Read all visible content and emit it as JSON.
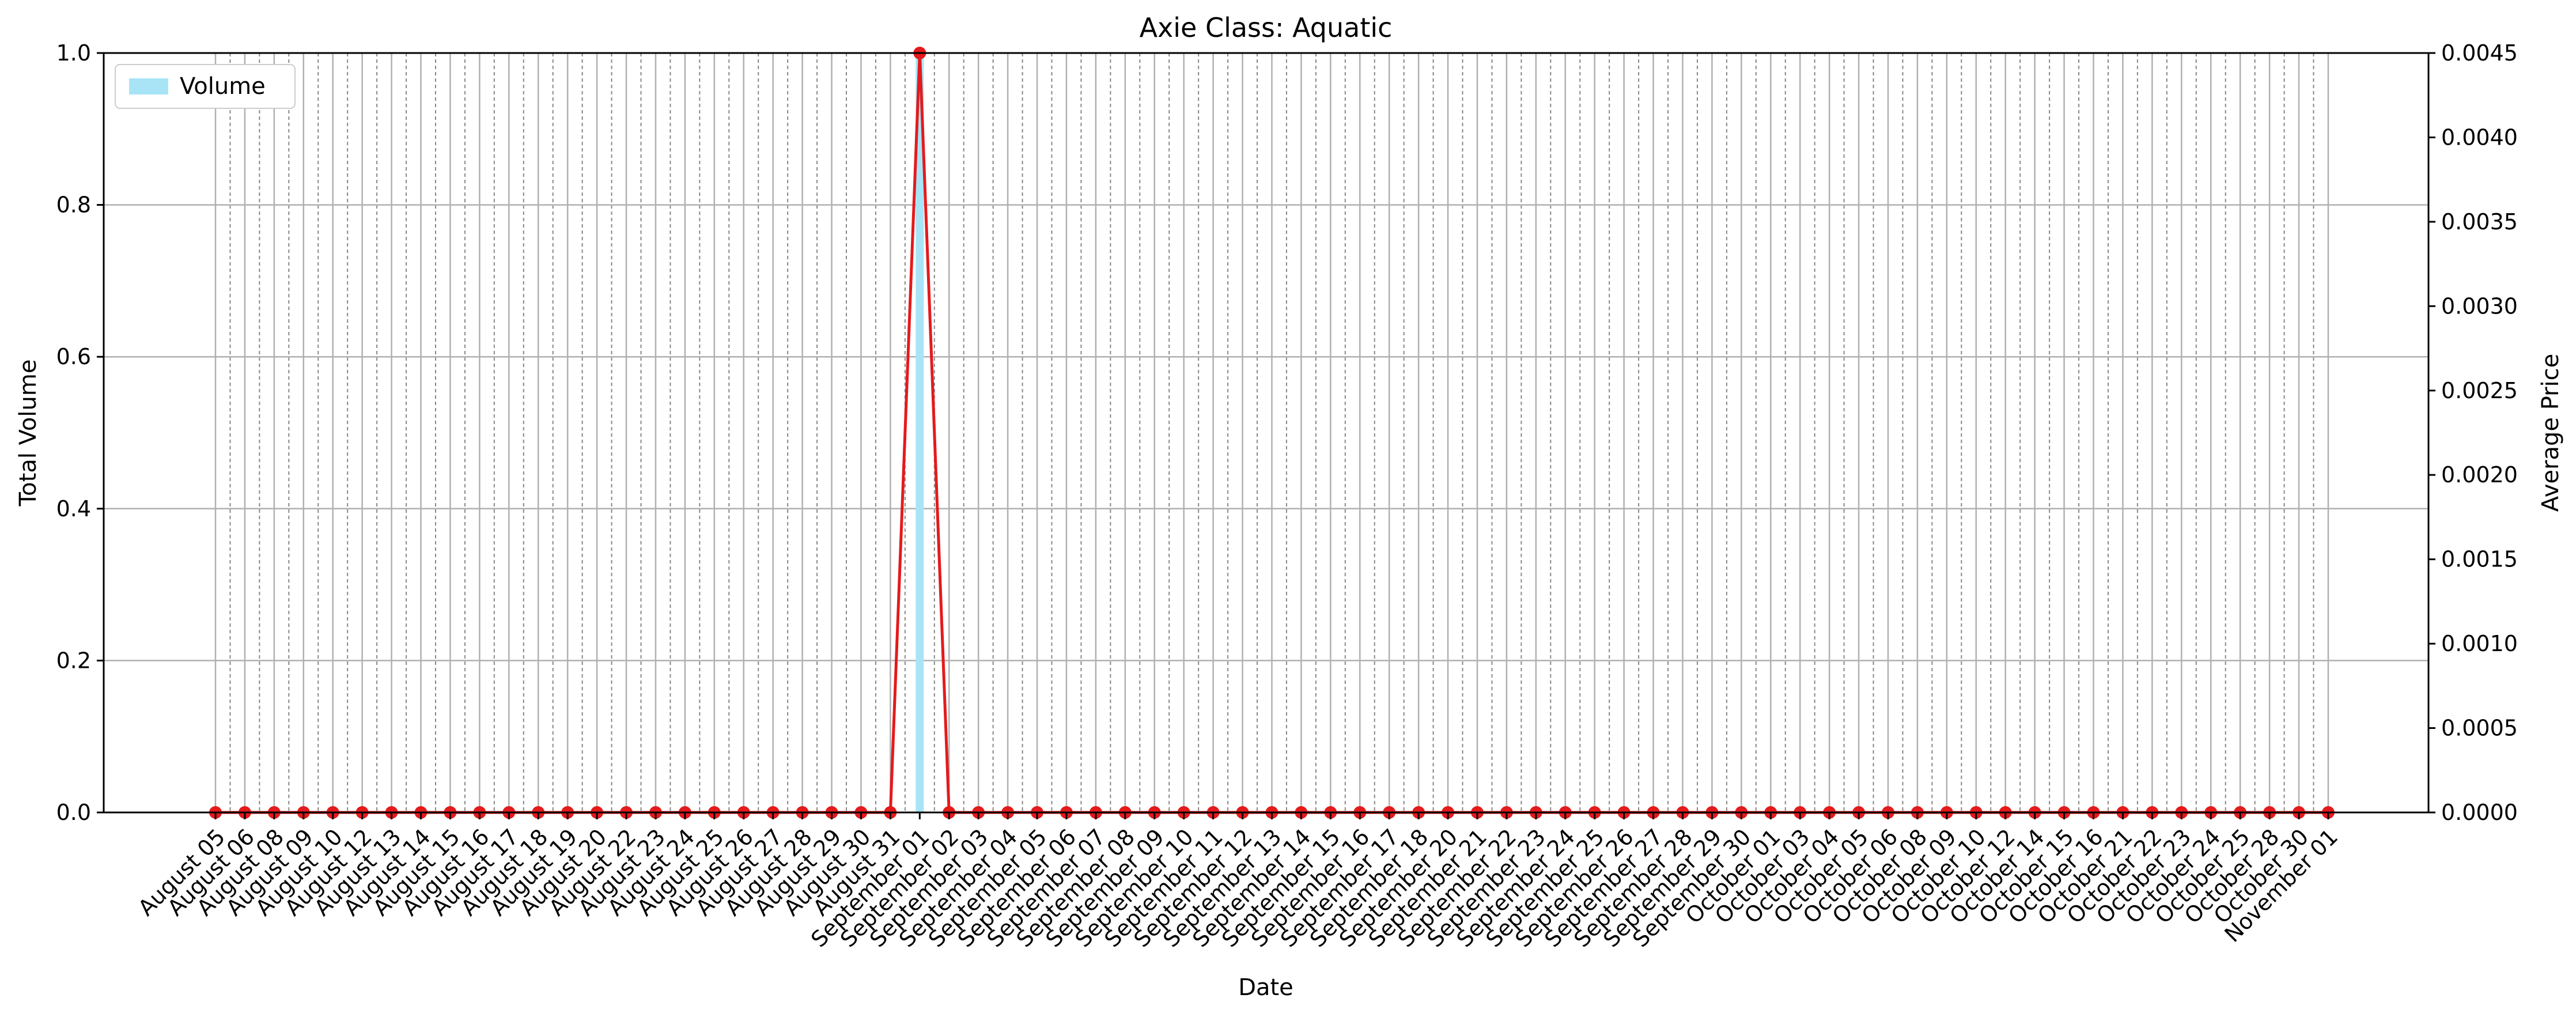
{
  "chart_data": {
    "type": "bar",
    "title": "Axie Class: Aquatic",
    "xlabel": "Date",
    "ylabel": "Total Volume",
    "y2label": "Average Price",
    "ylim": [
      0,
      1.0
    ],
    "y2lim": [
      0,
      0.0045
    ],
    "yticks": [
      "0.0",
      "0.2",
      "0.4",
      "0.6",
      "0.8",
      "1.0"
    ],
    "y2ticks": [
      "0.0000",
      "0.0005",
      "0.0010",
      "0.0015",
      "0.0020",
      "0.0025",
      "0.0030",
      "0.0035",
      "0.0040",
      "0.0045"
    ],
    "grid": true,
    "legend": {
      "position": "top-left",
      "entries": [
        "Volume"
      ]
    },
    "colors": {
      "volume": "#a8e4f6",
      "price": "#e41a1c",
      "grid": "#b0b0b0"
    },
    "categories": [
      "August 05",
      "August 06",
      "August 08",
      "August 09",
      "August 10",
      "August 12",
      "August 13",
      "August 14",
      "August 15",
      "August 16",
      "August 17",
      "August 18",
      "August 19",
      "August 20",
      "August 22",
      "August 23",
      "August 24",
      "August 25",
      "August 26",
      "August 27",
      "August 28",
      "August 29",
      "August 30",
      "August 31",
      "September 01",
      "September 02",
      "September 03",
      "September 04",
      "September 05",
      "September 06",
      "September 07",
      "September 08",
      "September 09",
      "September 10",
      "September 11",
      "September 12",
      "September 13",
      "September 14",
      "September 15",
      "September 16",
      "September 17",
      "September 18",
      "September 20",
      "September 21",
      "September 22",
      "September 23",
      "September 24",
      "September 25",
      "September 26",
      "September 27",
      "September 28",
      "September 29",
      "September 30",
      "October 01",
      "October 03",
      "October 04",
      "October 05",
      "October 06",
      "October 08",
      "October 09",
      "October 10",
      "October 12",
      "October 14",
      "October 15",
      "October 16",
      "October 21",
      "October 22",
      "October 23",
      "October 24",
      "October 25",
      "October 28",
      "October 30",
      "November 01"
    ],
    "series": [
      {
        "name": "Volume",
        "type": "bar",
        "axis": "left",
        "values": [
          0,
          0,
          0,
          0,
          0,
          0,
          0,
          0,
          0,
          0,
          0,
          0,
          0,
          0,
          0,
          0,
          0,
          0,
          0,
          0,
          0,
          0,
          0,
          0,
          1,
          0,
          0,
          0,
          0,
          0,
          0,
          0,
          0,
          0,
          0,
          0,
          0,
          0,
          0,
          0,
          0,
          0,
          0,
          0,
          0,
          0,
          0,
          0,
          0,
          0,
          0,
          0,
          0,
          0,
          0,
          0,
          0,
          0,
          0,
          0,
          0,
          0,
          0,
          0,
          0,
          0,
          0,
          0,
          0,
          0,
          0,
          0,
          0
        ]
      },
      {
        "type": "line",
        "axis": "right",
        "values": [
          0,
          0,
          0,
          0,
          0,
          0,
          0,
          0,
          0,
          0,
          0,
          0,
          0,
          0,
          0,
          0,
          0,
          0,
          0,
          0,
          0,
          0,
          0,
          0,
          0.0045,
          0,
          0,
          0,
          0,
          0,
          0,
          0,
          0,
          0,
          0,
          0,
          0,
          0,
          0,
          0,
          0,
          0,
          0,
          0,
          0,
          0,
          0,
          0,
          0,
          0,
          0,
          0,
          0,
          0,
          0,
          0,
          0,
          0,
          0,
          0,
          0,
          0,
          0,
          0,
          0,
          0,
          0,
          0,
          0,
          0,
          0,
          0,
          0
        ]
      }
    ]
  }
}
